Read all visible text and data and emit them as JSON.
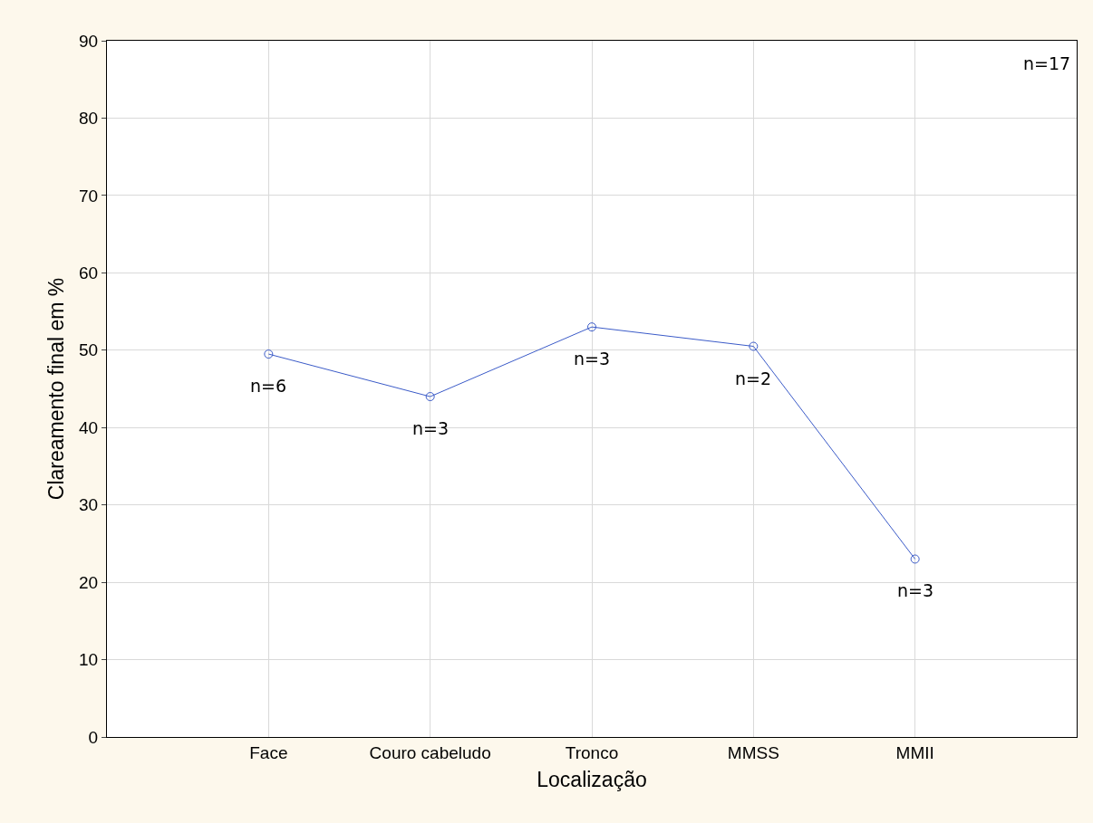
{
  "chart_data": {
    "type": "line",
    "xlabel": "Localização",
    "ylabel": "Clareamento final em %",
    "categories": [
      "Face",
      "Couro cabeludo",
      "Tronco",
      "MMSS",
      "MMII"
    ],
    "series": [
      {
        "color": "#3b5bc8",
        "values": [
          49.5,
          44,
          53,
          50.5,
          23
        ]
      }
    ],
    "ylim": [
      0,
      90
    ],
    "yticks": [
      0,
      10,
      20,
      30,
      40,
      50,
      60,
      70,
      80,
      90
    ],
    "grid": true,
    "marker": "circle",
    "line_style": "solid",
    "annotations": [
      {
        "text": "n=6",
        "x": "Face",
        "y": 49.5
      },
      {
        "text": "n=3",
        "x": "Couro cabeludo",
        "y": 44
      },
      {
        "text": "n=3",
        "x": "Tronco",
        "y": 53
      },
      {
        "text": "n=2",
        "x": "MMSS",
        "y": 50.5
      },
      {
        "text": "n=3",
        "x": "MMII",
        "y": 23
      },
      "n=17"
    ]
  }
}
